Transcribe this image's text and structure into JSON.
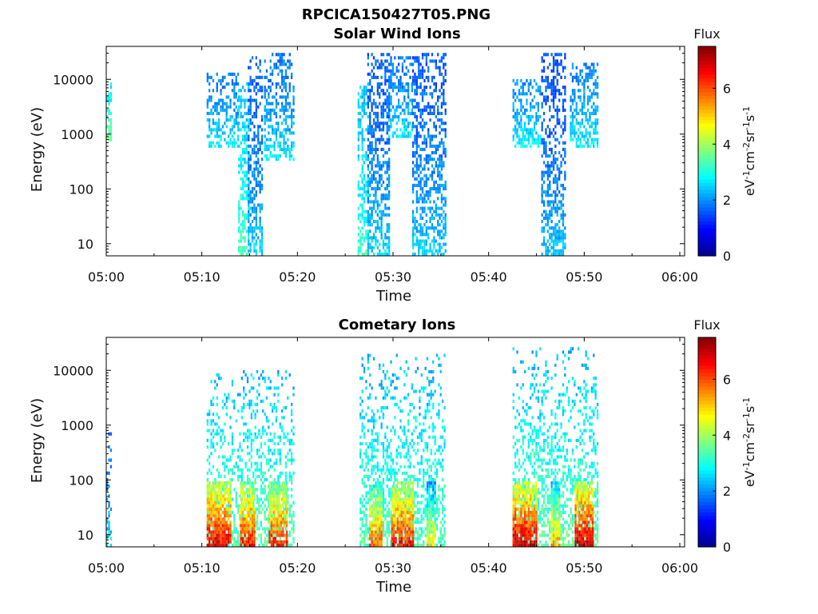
{
  "figure": {
    "title": "RPCICA150427T05.PNG"
  },
  "colorbar": {
    "title": "Flux",
    "label": "eV",
    "range": [
      0,
      7.5
    ],
    "ticks": [
      "0",
      "2",
      "4",
      "6"
    ],
    "colormap": "jet",
    "colors": [
      "#00008f",
      "#0000ff",
      "#0080ff",
      "#00ffff",
      "#80ff80",
      "#ffff00",
      "#ff8000",
      "#ff0000",
      "#800000"
    ]
  },
  "chart_data": [
    {
      "type": "heatmap",
      "title": "Solar Wind Ions",
      "xlabel": "Time",
      "ylabel": "Energy (eV)",
      "x_ticks": [
        "05:00",
        "05:10",
        "05:20",
        "05:30",
        "05:40",
        "05:50",
        "06:00"
      ],
      "x_range_minutes": [
        0,
        60.5
      ],
      "y_ticks": [
        "10",
        "100",
        "1000",
        "10000"
      ],
      "y_range": [
        6,
        40000
      ],
      "y_scale": "log",
      "activity": [
        {
          "start_min": 0.0,
          "end_min": 0.5,
          "emin": 700,
          "emax": 9000,
          "flux": 2.8
        },
        {
          "start_min": 10.5,
          "end_min": 13.8,
          "emin": 500,
          "emax": 12000,
          "flux": 1.9
        },
        {
          "start_min": 13.8,
          "end_min": 14.8,
          "emin": 6,
          "emax": 8000,
          "flux": 2.5
        },
        {
          "start_min": 14.8,
          "end_min": 16.2,
          "emin": 6,
          "emax": 25000,
          "flux": 1.6
        },
        {
          "start_min": 16.5,
          "end_min": 19.5,
          "emin": 300,
          "emax": 30000,
          "flux": 1.8
        },
        {
          "start_min": 26.3,
          "end_min": 27.3,
          "emin": 6,
          "emax": 8000,
          "flux": 2.4
        },
        {
          "start_min": 27.3,
          "end_min": 29.5,
          "emin": 6,
          "emax": 30000,
          "flux": 1.6
        },
        {
          "start_min": 29.5,
          "end_min": 32.0,
          "emin": 800,
          "emax": 25000,
          "flux": 1.8
        },
        {
          "start_min": 32.0,
          "end_min": 35.5,
          "emin": 6,
          "emax": 30000,
          "flux": 1.6
        },
        {
          "start_min": 42.5,
          "end_min": 45.5,
          "emin": 500,
          "emax": 10000,
          "flux": 2.0
        },
        {
          "start_min": 45.5,
          "end_min": 48.0,
          "emin": 6,
          "emax": 30000,
          "flux": 1.5
        },
        {
          "start_min": 48.5,
          "end_min": 51.5,
          "emin": 500,
          "emax": 20000,
          "flux": 1.9
        }
      ]
    },
    {
      "type": "heatmap",
      "title": "Cometary Ions",
      "xlabel": "Time",
      "ylabel": "Energy (eV)",
      "x_ticks": [
        "05:00",
        "05:10",
        "05:20",
        "05:30",
        "05:40",
        "05:50",
        "06:00"
      ],
      "x_range_minutes": [
        0,
        60.5
      ],
      "y_ticks": [
        "10",
        "100",
        "1000",
        "10000"
      ],
      "y_range": [
        6,
        40000
      ],
      "y_scale": "log",
      "activity": [
        {
          "start_min": 0.0,
          "end_min": 0.5,
          "emin": 6,
          "emax": 700,
          "flux": 2.6
        },
        {
          "start_min": 10.5,
          "end_min": 19.5,
          "emin": 6,
          "emax": 10000,
          "flux": 3.5
        },
        {
          "start_min": 26.5,
          "end_min": 35.5,
          "emin": 6,
          "emax": 20000,
          "flux": 3.4
        },
        {
          "start_min": 42.5,
          "end_min": 51.5,
          "emin": 6,
          "emax": 25000,
          "flux": 3.5
        }
      ],
      "hot_bands": [
        {
          "start_min": 10.5,
          "end_min": 13.0,
          "flux": 6.8
        },
        {
          "start_min": 14.0,
          "end_min": 15.5,
          "flux": 6.5
        },
        {
          "start_min": 17.0,
          "end_min": 18.8,
          "flux": 6.4
        },
        {
          "start_min": 27.5,
          "end_min": 28.8,
          "flux": 5.8
        },
        {
          "start_min": 29.8,
          "end_min": 32.0,
          "flux": 6.5
        },
        {
          "start_min": 33.5,
          "end_min": 34.5,
          "flux": 4.8
        },
        {
          "start_min": 42.5,
          "end_min": 45.0,
          "flux": 6.9
        },
        {
          "start_min": 46.5,
          "end_min": 47.5,
          "flux": 5.4
        },
        {
          "start_min": 49.0,
          "end_min": 51.0,
          "flux": 7.0
        }
      ]
    }
  ]
}
